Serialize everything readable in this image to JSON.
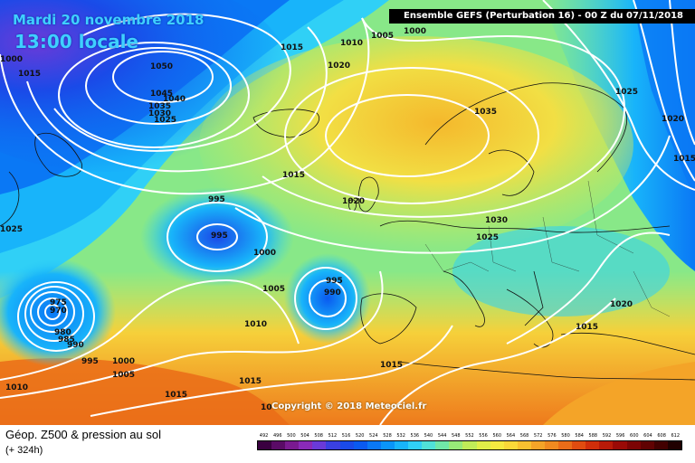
{
  "header": {
    "date": "Mardi 20 novembre 2018",
    "local_time": "13:00 locale",
    "run": "Ensemble GEFS  (Perturbation 16)  -  00 Z du 07/11/2018"
  },
  "map": {
    "copyright": "Copyright © 2018 Meteociel.fr",
    "pressure_labels": [
      "1000",
      "1015",
      "1015",
      "1010",
      "1005",
      "1000",
      "1020",
      "1050",
      "1045",
      "1040",
      "1035",
      "1030",
      "1025",
      "1035",
      "1025",
      "1020",
      "1015",
      "1015",
      "1025",
      "995",
      "995",
      "1000",
      "1020",
      "1030",
      "1025",
      "995",
      "990",
      "1005",
      "1010",
      "975",
      "970",
      "980",
      "985",
      "990",
      "995",
      "1000",
      "1005",
      "1015",
      "1010",
      "1015",
      "1015",
      "1015",
      "1020",
      "10",
      "1010"
    ],
    "low_centers": [
      "995",
      "990",
      "970"
    ],
    "high_centers": [
      "1050",
      "1035"
    ]
  },
  "footer": {
    "title": "Géop. Z500 & pression au sol",
    "lead": "(+ 324h)",
    "scale_ticks": [
      "492",
      "496",
      "500",
      "504",
      "508",
      "512",
      "516",
      "520",
      "524",
      "528",
      "532",
      "536",
      "540",
      "544",
      "548",
      "552",
      "556",
      "560",
      "564",
      "568",
      "572",
      "576",
      "580",
      "584",
      "588",
      "592",
      "596",
      "600",
      "604",
      "608",
      "612"
    ],
    "scale_colors": [
      "#3a0040",
      "#5a0b66",
      "#7a1a90",
      "#8a2ab8",
      "#6a3ad8",
      "#3a40e0",
      "#1a4ae8",
      "#0a5af0",
      "#0a78f5",
      "#0a95f8",
      "#18b4fa",
      "#30d0f6",
      "#50e2d8",
      "#70e8a8",
      "#98ea78",
      "#c0ec58",
      "#e0ee48",
      "#f6ea40",
      "#fad838",
      "#f8c030",
      "#f4a428",
      "#f08a20",
      "#ea6c18",
      "#e04c10",
      "#d02e0a",
      "#b81a08",
      "#9a0a06",
      "#7c0404",
      "#600202",
      "#420000",
      "#200000"
    ]
  }
}
